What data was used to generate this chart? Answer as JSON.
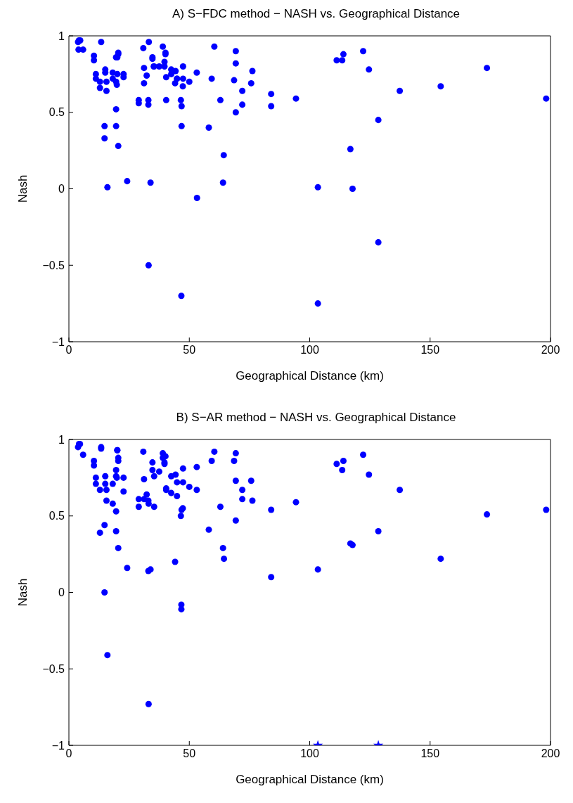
{
  "chart_data": [
    {
      "type": "scatter",
      "title": "A) S−FDC method − NASH vs. Geographical Distance",
      "xlabel": "Geographical Distance (km)",
      "ylabel": "Nash",
      "xlim": [
        0,
        200
      ],
      "xticks": [
        0,
        50,
        100,
        150,
        200
      ],
      "ylim": [
        -1,
        1
      ],
      "yticks": [
        -1,
        -0.5,
        0,
        0.5,
        1
      ],
      "marker": "circle",
      "grid": false,
      "legend": false,
      "series": [
        {
          "color": "#0000ff",
          "x": [
            3.8,
            4.2,
            4.7,
            4.0,
            5.9,
            13.4,
            10.4,
            10.4,
            11.2,
            11.2,
            12.9,
            12.9,
            15.1,
            15.1,
            15.6,
            15.6,
            18.2,
            18.2,
            19.6,
            20.1,
            20.5,
            20.5,
            20.1,
            22.7,
            22.7,
            19.6,
            19.9,
            19.6,
            14.8,
            19.6,
            14.8,
            20.5,
            16.0,
            24.2,
            33.9,
            33.1,
            30.9,
            33.2,
            31.2,
            32.3,
            31.2,
            29.0,
            29.0,
            33.0,
            33.0,
            34.7,
            34.7,
            35.3,
            35.3,
            37.5,
            39.0,
            40.1,
            40.1,
            39.7,
            39.7,
            40.4,
            40.4,
            42.5,
            42.5,
            44.3,
            44.1,
            44.9,
            44.9,
            47.4,
            47.4,
            47.3,
            46.5,
            46.8,
            46.8,
            46.7,
            50.0,
            53.1,
            53.2,
            58.1,
            59.3,
            60.4,
            62.9,
            64.3,
            64.0,
            68.6,
            69.3,
            69.3,
            69.3,
            72.0,
            72.0,
            75.7,
            76.2,
            84.0,
            84.0,
            94.3,
            103.4,
            103.4,
            111.2,
            113.5,
            114.0,
            122.2,
            124.6,
            137.4,
            154.4,
            173.6,
            198.2,
            128.5,
            116.9,
            117.8,
            128.5
          ],
          "values": [
            0.96,
            0.97,
            0.97,
            0.91,
            0.91,
            0.96,
            0.87,
            0.84,
            0.75,
            0.72,
            0.7,
            0.66,
            0.78,
            0.76,
            0.7,
            0.64,
            0.76,
            0.72,
            0.86,
            0.86,
            0.88,
            0.89,
            0.75,
            0.75,
            0.73,
            0.7,
            0.68,
            0.52,
            0.41,
            0.41,
            0.33,
            0.28,
            0.01,
            0.05,
            0.04,
            -0.5,
            0.92,
            0.96,
            0.79,
            0.74,
            0.69,
            0.58,
            0.56,
            0.58,
            0.55,
            0.86,
            0.85,
            0.8,
            0.8,
            0.8,
            0.93,
            0.89,
            0.88,
            0.83,
            0.8,
            0.73,
            0.58,
            0.78,
            0.75,
            0.77,
            0.69,
            0.72,
            0.72,
            0.8,
            0.72,
            0.67,
            0.58,
            0.54,
            0.41,
            -0.7,
            0.7,
            0.76,
            -0.06,
            0.4,
            0.72,
            0.93,
            0.58,
            0.22,
            0.04,
            0.71,
            0.9,
            0.82,
            0.5,
            0.64,
            0.55,
            0.69,
            0.77,
            0.62,
            0.54,
            0.59,
            0.01,
            -0.75,
            0.84,
            0.84,
            0.88,
            0.9,
            0.78,
            0.64,
            0.67,
            0.79,
            0.59,
            0.45,
            0.26,
            0.0,
            -0.35
          ]
        }
      ]
    },
    {
      "type": "scatter",
      "title": "B) S−AR method − NASH vs. Geographical Distance",
      "xlabel": "Geographical Distance (km)",
      "ylabel": "Nash",
      "xlim": [
        0,
        200
      ],
      "xticks": [
        0,
        50,
        100,
        150,
        200
      ],
      "ylim": [
        -1,
        1
      ],
      "yticks": [
        -1,
        -0.5,
        0,
        0.5,
        1
      ],
      "marker": "circle",
      "grid": false,
      "legend": false,
      "series": [
        {
          "color": "#0000ff",
          "x": [
            3.8,
            4.2,
            4.6,
            5.9,
            13.4,
            13.4,
            10.4,
            10.4,
            11.2,
            11.2,
            12.9,
            15.1,
            15.1,
            15.6,
            15.6,
            18.2,
            18.2,
            20.1,
            20.1,
            20.5,
            20.5,
            19.6,
            19.6,
            19.9,
            22.7,
            22.7,
            19.6,
            14.8,
            12.9,
            19.6,
            20.5,
            24.2,
            14.8,
            16.0,
            33.1,
            33.0,
            33.9,
            30.9,
            31.2,
            32.3,
            31.2,
            33.0,
            33.1,
            29.0,
            29.0,
            35.4,
            34.7,
            34.7,
            35.4,
            37.5,
            39.0,
            39.0,
            40.1,
            39.7,
            39.7,
            40.4,
            40.4,
            42.5,
            42.5,
            44.3,
            44.9,
            44.9,
            44.1,
            47.4,
            47.4,
            46.5,
            46.8,
            47.3,
            46.7,
            46.7,
            50.0,
            53.1,
            53.1,
            58.1,
            59.3,
            60.4,
            62.9,
            64.0,
            64.4,
            68.6,
            69.3,
            69.3,
            69.3,
            72.0,
            72.0,
            75.7,
            76.2,
            84.0,
            84.0,
            94.3,
            103.4,
            111.2,
            113.5,
            114.0,
            122.2,
            124.6,
            137.4,
            173.6,
            198.2,
            128.5,
            116.9,
            117.8,
            154.4
          ],
          "values": [
            0.95,
            0.97,
            0.97,
            0.9,
            0.95,
            0.94,
            0.86,
            0.83,
            0.75,
            0.71,
            0.67,
            0.76,
            0.71,
            0.67,
            0.6,
            0.71,
            0.58,
            0.93,
            0.93,
            0.88,
            0.86,
            0.8,
            0.76,
            0.75,
            0.75,
            0.66,
            0.53,
            0.44,
            0.39,
            0.4,
            0.29,
            0.16,
            0.0,
            -0.41,
            -0.73,
            0.14,
            0.15,
            0.92,
            0.74,
            0.64,
            0.61,
            0.6,
            0.58,
            0.61,
            0.56,
            0.56,
            0.85,
            0.8,
            0.76,
            0.79,
            0.91,
            0.88,
            0.89,
            0.85,
            0.84,
            0.68,
            0.67,
            0.76,
            0.65,
            0.77,
            0.72,
            0.63,
            0.2,
            0.81,
            0.72,
            0.5,
            0.54,
            0.55,
            -0.08,
            -0.11,
            0.69,
            0.82,
            0.67,
            0.41,
            0.86,
            0.92,
            0.56,
            0.29,
            0.22,
            0.86,
            0.91,
            0.73,
            0.47,
            0.67,
            0.61,
            0.73,
            0.6,
            0.54,
            0.1,
            0.59,
            0.15,
            0.84,
            0.8,
            0.86,
            0.9,
            0.77,
            0.67,
            0.51,
            0.54,
            0.4,
            0.32,
            0.31,
            0.22
          ]
        },
        {
          "color": "#0000ff",
          "marker": "star",
          "x": [
            103.4,
            128.5
          ],
          "values": [
            -1,
            -1
          ]
        }
      ]
    }
  ]
}
